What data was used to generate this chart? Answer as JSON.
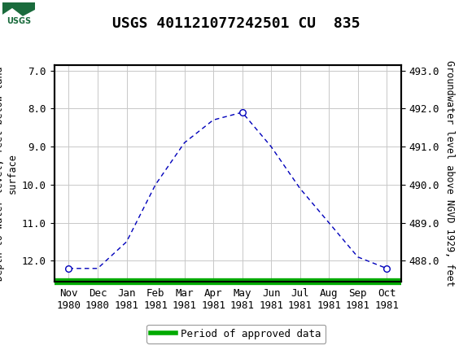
{
  "title": "USGS 401121077242501 CU  835",
  "ylabel_left": "Depth to water level, feet below land\nsurface",
  "ylabel_right": "Groundwater level above NGVD 1929, feet",
  "x_labels": [
    "Nov\n1980",
    "Dec\n1980",
    "Jan\n1981",
    "Feb\n1981",
    "Mar\n1981",
    "Apr\n1981",
    "May\n1981",
    "Jun\n1981",
    "Jul\n1981",
    "Aug\n1981",
    "Sep\n1981",
    "Oct\n1981"
  ],
  "x_positions": [
    0,
    1,
    2,
    3,
    4,
    5,
    6,
    7,
    8,
    9,
    10,
    11
  ],
  "y_depth": [
    12.2,
    12.2,
    11.5,
    10.0,
    8.9,
    8.3,
    8.1,
    9.0,
    10.1,
    11.0,
    11.9,
    12.2
  ],
  "marker_indices": [
    0,
    6,
    11
  ],
  "ylim_left": [
    12.55,
    6.85
  ],
  "ylim_right": [
    487.45,
    493.15
  ],
  "yticks_left": [
    7.0,
    8.0,
    9.0,
    10.0,
    11.0,
    12.0
  ],
  "yticks_right": [
    488.0,
    489.0,
    490.0,
    491.0,
    492.0,
    493.0
  ],
  "line_color": "#0000bb",
  "marker_color": "#0000bb",
  "marker_face": "white",
  "grid_color": "#c8c8c8",
  "bg_color": "#ffffff",
  "header_color": "#1a6b3c",
  "approved_bar_color": "#00aa00",
  "legend_label": "Period of approved data",
  "title_fontsize": 13,
  "axis_fontsize": 8.5,
  "tick_fontsize": 9
}
